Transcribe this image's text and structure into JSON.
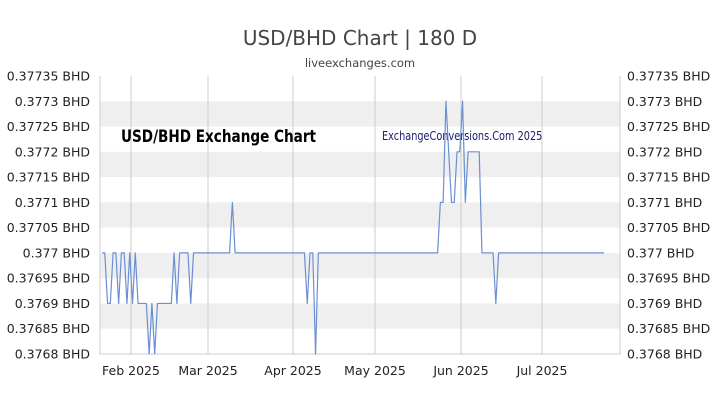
{
  "header": {
    "title": "USD/BHD Chart | 180 D",
    "subtitle": "liveexchanges.com"
  },
  "watermarks": {
    "left": "USD/BHD Exchange Chart",
    "right": "ExchangeConversions.Com 2025",
    "right_color": "#1a1a6e"
  },
  "colors": {
    "line": "#6b8fd4",
    "band": "#efefef",
    "grid": "#cccccc"
  },
  "chart_data": {
    "type": "line",
    "title": "USD/BHD Chart | 180 D",
    "xlabel": "",
    "ylabel": "",
    "ylim": [
      0.3768,
      0.37735
    ],
    "y_ticks": [
      "0.37735 BHD",
      "0.3773 BHD",
      "0.37725 BHD",
      "0.3772 BHD",
      "0.37715 BHD",
      "0.3771 BHD",
      "0.37705 BHD",
      "0.377 BHD",
      "0.37695 BHD",
      "0.3769 BHD",
      "0.37685 BHD",
      "0.3768 BHD"
    ],
    "y_ticks_right": [
      "0.37735 BHD",
      "0.3773 BHD",
      "0.37725 BHD",
      "0.3772 BHD",
      "0.37715 BHD",
      "0.3771 BHD",
      "0.37705 BHD",
      "0.377 BHD",
      "0.37695 BHD",
      "0.3769 BHD",
      "0.37685 BHD",
      "0.3768 BHD"
    ],
    "x_ticks": [
      "Feb 2025",
      "Mar 2025",
      "Apr 2025",
      "May 2025",
      "Jun 2025",
      "Jul 2025"
    ],
    "grid": true,
    "series": [
      {
        "values": [
          0.377,
          0.377,
          0.3769,
          0.3769,
          0.377,
          0.377,
          0.3769,
          0.377,
          0.377,
          0.3769,
          0.377,
          0.3769,
          0.377,
          0.3769,
          0.3769,
          0.3769,
          0.3769,
          0.3768,
          0.3769,
          0.3768,
          0.3769,
          0.3769,
          0.3769,
          0.3769,
          0.3769,
          0.3769,
          0.377,
          0.3769,
          0.377,
          0.377,
          0.377,
          0.377,
          0.3769,
          0.377,
          0.377,
          0.377,
          0.377,
          0.377,
          0.377,
          0.377,
          0.377,
          0.377,
          0.377,
          0.377,
          0.377,
          0.377,
          0.377,
          0.3771,
          0.377,
          0.377,
          0.377,
          0.377,
          0.377,
          0.377,
          0.377,
          0.377,
          0.377,
          0.377,
          0.377,
          0.377,
          0.377,
          0.377,
          0.377,
          0.377,
          0.377,
          0.377,
          0.377,
          0.377,
          0.377,
          0.377,
          0.377,
          0.377,
          0.377,
          0.377,
          0.3769,
          0.377,
          0.377,
          0.3768,
          0.377,
          0.377,
          0.377,
          0.377,
          0.377,
          0.377,
          0.377,
          0.377,
          0.377,
          0.377,
          0.377,
          0.377,
          0.377,
          0.377,
          0.377,
          0.377,
          0.377,
          0.377,
          0.377,
          0.377,
          0.377,
          0.377,
          0.377,
          0.377,
          0.377,
          0.377,
          0.377,
          0.377,
          0.377,
          0.377,
          0.377,
          0.377,
          0.377,
          0.377,
          0.377,
          0.377,
          0.377,
          0.377,
          0.377,
          0.377,
          0.377,
          0.377,
          0.377,
          0.377,
          0.3771,
          0.3771,
          0.3773,
          0.3772,
          0.3771,
          0.3771,
          0.3772,
          0.3772,
          0.3773,
          0.3771,
          0.3772,
          0.3772,
          0.3772,
          0.3772,
          0.3772,
          0.377,
          0.377,
          0.377,
          0.377,
          0.377,
          0.3769,
          0.377,
          0.377,
          0.377,
          0.377,
          0.377,
          0.377,
          0.377,
          0.377,
          0.377,
          0.377,
          0.377,
          0.377,
          0.377,
          0.377,
          0.377,
          0.377,
          0.377,
          0.377,
          0.377,
          0.377,
          0.377,
          0.377,
          0.377,
          0.377,
          0.377,
          0.377,
          0.377,
          0.377,
          0.377,
          0.377,
          0.377,
          0.377,
          0.377,
          0.377,
          0.377,
          0.377,
          0.377,
          0.377,
          0.377
        ]
      }
    ]
  }
}
